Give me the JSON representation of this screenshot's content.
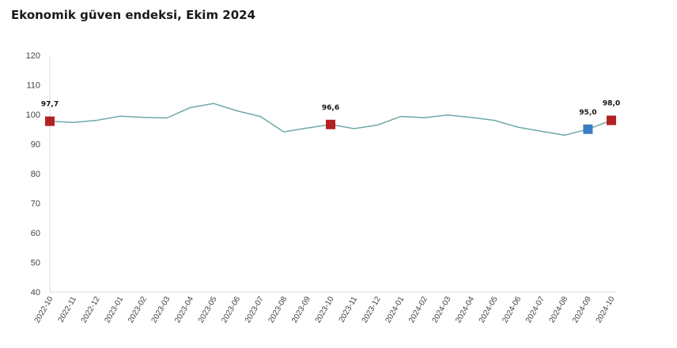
{
  "chart_data": {
    "type": "line",
    "title": "Ekonomik güven endeksi, Ekim 2024",
    "xlabel": "",
    "ylabel": "",
    "ylim": [
      40,
      120
    ],
    "yticks": [
      40,
      50,
      60,
      70,
      80,
      90,
      100,
      110,
      120
    ],
    "categories": [
      "2022-10",
      "2022-11",
      "2022-12",
      "2023-01",
      "2023-02",
      "2023-03",
      "2023-04",
      "2023-05",
      "2023-06",
      "2023-07",
      "2023-08",
      "2023-09",
      "2023-10",
      "2023-11",
      "2023-12",
      "2024-01",
      "2024-02",
      "2024-03",
      "2024-04",
      "2024-05",
      "2024-06",
      "2024-07",
      "2024-08",
      "2024-09",
      "2024-10"
    ],
    "series": [
      {
        "values": [
          97.7,
          97.3,
          98.0,
          99.4,
          99.0,
          98.8,
          102.3,
          103.7,
          101.2,
          99.3,
          94.1,
          95.4,
          96.6,
          95.2,
          96.4,
          99.3,
          98.9,
          99.8,
          99.0,
          98.0,
          95.7,
          94.3,
          93.0,
          95.0,
          98.0
        ],
        "color": "#6fa8a8"
      }
    ],
    "highlights": [
      {
        "index": 0,
        "label": "97,7",
        "color": "#b22222"
      },
      {
        "index": 12,
        "label": "96,6",
        "color": "#b22222"
      },
      {
        "index": 23,
        "label": "95,0",
        "color": "#3a7cc0"
      },
      {
        "index": 24,
        "label": "98,0",
        "color": "#b22222"
      }
    ],
    "grid": false,
    "legend": "none"
  }
}
